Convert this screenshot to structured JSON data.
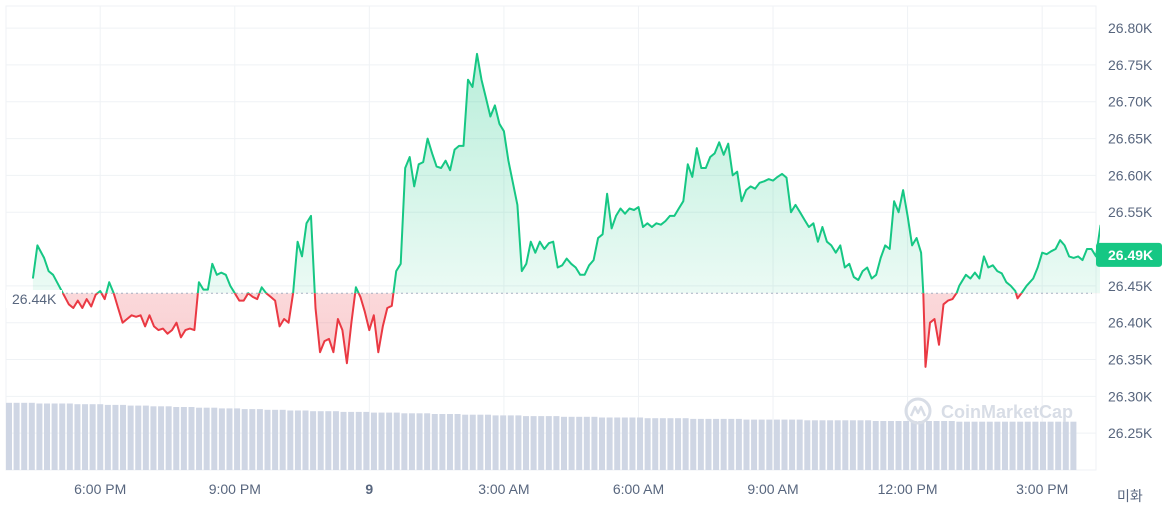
{
  "chart_data": {
    "type": "area",
    "baseline": 26.44,
    "baseline_label": "26.44K",
    "current_label": "26.49K",
    "ylim": [
      26.2,
      26.83
    ],
    "y_ticks": [
      {
        "v": 26.8,
        "label": "26.80K"
      },
      {
        "v": 26.75,
        "label": "26.75K"
      },
      {
        "v": 26.7,
        "label": "26.70K"
      },
      {
        "v": 26.65,
        "label": "26.65K"
      },
      {
        "v": 26.6,
        "label": "26.60K"
      },
      {
        "v": 26.55,
        "label": "26.55K"
      },
      {
        "v": 26.45,
        "label": "26.45K"
      },
      {
        "v": 26.4,
        "label": "26.40K"
      },
      {
        "v": 26.35,
        "label": "26.35K"
      },
      {
        "v": 26.3,
        "label": "26.30K"
      },
      {
        "v": 26.25,
        "label": "26.25K"
      }
    ],
    "x_ticks": [
      {
        "h": 18,
        "label": "6:00 PM",
        "bold": false
      },
      {
        "h": 21,
        "label": "9:00 PM",
        "bold": false
      },
      {
        "h": 24,
        "label": "9",
        "bold": true
      },
      {
        "h": 27,
        "label": "3:00 AM",
        "bold": false
      },
      {
        "h": 30,
        "label": "6:00 AM",
        "bold": false
      },
      {
        "h": 33,
        "label": "9:00 AM",
        "bold": false
      },
      {
        "h": 36,
        "label": "12:00 PM",
        "bold": false
      },
      {
        "h": 39,
        "label": "3:00 PM",
        "bold": false
      }
    ],
    "xlim_hours": [
      15.9,
      40.2
    ],
    "series": [
      {
        "values": [
          [
            16.5,
            26.46
          ],
          [
            16.6,
            26.505
          ],
          [
            16.75,
            26.488
          ],
          [
            16.85,
            26.47
          ],
          [
            16.95,
            26.465
          ],
          [
            17.3,
            26.425
          ],
          [
            17.4,
            26.42
          ],
          [
            17.5,
            26.43
          ],
          [
            17.6,
            26.42
          ],
          [
            17.7,
            26.432
          ],
          [
            17.8,
            26.422
          ],
          [
            17.9,
            26.438
          ],
          [
            18.0,
            26.443
          ],
          [
            18.1,
            26.432
          ],
          [
            18.2,
            26.455
          ],
          [
            18.3,
            26.44
          ],
          [
            18.4,
            26.42
          ],
          [
            18.5,
            26.4
          ],
          [
            18.6,
            26.405
          ],
          [
            18.7,
            26.41
          ],
          [
            18.8,
            26.408
          ],
          [
            18.9,
            26.41
          ],
          [
            19.0,
            26.395
          ],
          [
            19.1,
            26.41
          ],
          [
            19.2,
            26.395
          ],
          [
            19.3,
            26.39
          ],
          [
            19.4,
            26.392
          ],
          [
            19.5,
            26.385
          ],
          [
            19.6,
            26.39
          ],
          [
            19.7,
            26.4
          ],
          [
            19.8,
            26.38
          ],
          [
            19.9,
            26.39
          ],
          [
            20.0,
            26.392
          ],
          [
            20.1,
            26.39
          ],
          [
            20.2,
            26.455
          ],
          [
            20.3,
            26.445
          ],
          [
            20.4,
            26.445
          ],
          [
            20.5,
            26.48
          ],
          [
            20.6,
            26.465
          ],
          [
            20.7,
            26.468
          ],
          [
            20.8,
            26.465
          ],
          [
            20.9,
            26.45
          ],
          [
            21.0,
            26.44
          ],
          [
            21.1,
            26.43
          ],
          [
            21.2,
            26.43
          ],
          [
            21.3,
            26.44
          ],
          [
            21.4,
            26.435
          ],
          [
            21.5,
            26.432
          ],
          [
            21.6,
            26.448
          ],
          [
            21.7,
            26.44
          ],
          [
            21.8,
            26.435
          ],
          [
            21.9,
            26.43
          ],
          [
            22.0,
            26.395
          ],
          [
            22.1,
            26.405
          ],
          [
            22.2,
            26.4
          ],
          [
            22.3,
            26.44
          ],
          [
            22.4,
            26.51
          ],
          [
            22.5,
            26.49
          ],
          [
            22.6,
            26.535
          ],
          [
            22.7,
            26.545
          ],
          [
            22.8,
            26.42
          ],
          [
            22.9,
            26.36
          ],
          [
            23.0,
            26.375
          ],
          [
            23.1,
            26.378
          ],
          [
            23.2,
            26.36
          ],
          [
            23.3,
            26.405
          ],
          [
            23.4,
            26.39
          ],
          [
            23.5,
            26.345
          ],
          [
            23.6,
            26.4
          ],
          [
            23.7,
            26.448
          ],
          [
            23.8,
            26.435
          ],
          [
            23.9,
            26.415
          ],
          [
            24.0,
            26.39
          ],
          [
            24.1,
            26.41
          ],
          [
            24.2,
            26.36
          ],
          [
            24.3,
            26.395
          ],
          [
            24.4,
            26.42
          ],
          [
            24.5,
            26.423
          ],
          [
            24.6,
            26.47
          ],
          [
            24.7,
            26.48
          ],
          [
            24.8,
            26.61
          ],
          [
            24.9,
            26.625
          ],
          [
            25.0,
            26.585
          ],
          [
            25.1,
            26.615
          ],
          [
            25.2,
            26.618
          ],
          [
            25.3,
            26.65
          ],
          [
            25.4,
            26.63
          ],
          [
            25.5,
            26.612
          ],
          [
            25.6,
            26.61
          ],
          [
            25.7,
            26.62
          ],
          [
            25.8,
            26.607
          ],
          [
            25.9,
            26.635
          ],
          [
            26.0,
            26.64
          ],
          [
            26.1,
            26.64
          ],
          [
            26.2,
            26.73
          ],
          [
            26.3,
            26.72
          ],
          [
            26.4,
            26.765
          ],
          [
            26.5,
            26.73
          ],
          [
            26.6,
            26.705
          ],
          [
            26.7,
            26.68
          ],
          [
            26.8,
            26.695
          ],
          [
            26.9,
            26.67
          ],
          [
            27.0,
            26.66
          ],
          [
            27.1,
            26.62
          ],
          [
            27.2,
            26.59
          ],
          [
            27.3,
            26.56
          ],
          [
            27.4,
            26.47
          ],
          [
            27.5,
            26.48
          ],
          [
            27.6,
            26.51
          ],
          [
            27.7,
            26.495
          ],
          [
            27.8,
            26.51
          ],
          [
            27.9,
            26.5
          ],
          [
            28.0,
            26.508
          ],
          [
            28.1,
            26.51
          ],
          [
            28.2,
            26.475
          ],
          [
            28.3,
            26.478
          ],
          [
            28.4,
            26.487
          ],
          [
            28.5,
            26.48
          ],
          [
            28.6,
            26.475
          ],
          [
            28.7,
            26.465
          ],
          [
            28.8,
            26.465
          ],
          [
            28.9,
            26.478
          ],
          [
            29.0,
            26.485
          ],
          [
            29.1,
            26.515
          ],
          [
            29.2,
            26.52
          ],
          [
            29.3,
            26.575
          ],
          [
            29.4,
            26.528
          ],
          [
            29.5,
            26.545
          ],
          [
            29.6,
            26.555
          ],
          [
            29.7,
            26.548
          ],
          [
            29.8,
            26.555
          ],
          [
            29.9,
            26.553
          ],
          [
            30.0,
            26.557
          ],
          [
            30.1,
            26.53
          ],
          [
            30.2,
            26.535
          ],
          [
            30.3,
            26.53
          ],
          [
            30.4,
            26.535
          ],
          [
            30.5,
            26.533
          ],
          [
            30.6,
            26.538
          ],
          [
            30.7,
            26.545
          ],
          [
            30.8,
            26.545
          ],
          [
            30.9,
            26.555
          ],
          [
            31.0,
            26.565
          ],
          [
            31.1,
            26.615
          ],
          [
            31.2,
            26.598
          ],
          [
            31.3,
            26.637
          ],
          [
            31.4,
            26.61
          ],
          [
            31.5,
            26.61
          ],
          [
            31.6,
            26.625
          ],
          [
            31.7,
            26.63
          ],
          [
            31.8,
            26.645
          ],
          [
            31.9,
            26.628
          ],
          [
            32.0,
            26.643
          ],
          [
            32.1,
            26.6
          ],
          [
            32.2,
            26.605
          ],
          [
            32.3,
            26.565
          ],
          [
            32.4,
            26.58
          ],
          [
            32.5,
            26.585
          ],
          [
            32.6,
            26.582
          ],
          [
            32.7,
            26.59
          ],
          [
            32.8,
            26.592
          ],
          [
            32.9,
            26.595
          ],
          [
            33.0,
            26.593
          ],
          [
            33.1,
            26.598
          ],
          [
            33.2,
            26.602
          ],
          [
            33.3,
            26.597
          ],
          [
            33.4,
            26.55
          ],
          [
            33.5,
            26.56
          ],
          [
            33.6,
            26.55
          ],
          [
            33.7,
            26.54
          ],
          [
            33.8,
            26.53
          ],
          [
            33.9,
            26.535
          ],
          [
            34.0,
            26.51
          ],
          [
            34.1,
            26.53
          ],
          [
            34.2,
            26.51
          ],
          [
            34.3,
            26.505
          ],
          [
            34.4,
            26.495
          ],
          [
            34.5,
            26.505
          ],
          [
            34.6,
            26.475
          ],
          [
            34.7,
            26.48
          ],
          [
            34.8,
            26.462
          ],
          [
            34.9,
            26.458
          ],
          [
            35.0,
            26.47
          ],
          [
            35.1,
            26.475
          ],
          [
            35.2,
            26.46
          ],
          [
            35.3,
            26.465
          ],
          [
            35.4,
            26.488
          ],
          [
            35.5,
            26.505
          ],
          [
            35.6,
            26.5
          ],
          [
            35.7,
            26.565
          ],
          [
            35.8,
            26.55
          ],
          [
            35.9,
            26.58
          ],
          [
            36.0,
            26.545
          ],
          [
            36.1,
            26.505
          ],
          [
            36.2,
            26.515
          ],
          [
            36.3,
            26.495
          ],
          [
            36.35,
            26.44
          ],
          [
            36.4,
            26.34
          ],
          [
            36.5,
            26.4
          ],
          [
            36.6,
            26.405
          ],
          [
            36.7,
            26.37
          ],
          [
            36.8,
            26.425
          ],
          [
            36.9,
            26.43
          ],
          [
            37.0,
            26.432
          ],
          [
            37.1,
            26.441
          ],
          [
            37.15,
            26.45
          ],
          [
            37.3,
            26.465
          ],
          [
            37.4,
            26.46
          ],
          [
            37.5,
            26.468
          ],
          [
            37.6,
            26.46
          ],
          [
            37.7,
            26.49
          ],
          [
            37.8,
            26.475
          ],
          [
            37.9,
            26.478
          ],
          [
            38.0,
            26.47
          ],
          [
            38.1,
            26.467
          ],
          [
            38.2,
            26.455
          ],
          [
            38.3,
            26.45
          ],
          [
            38.4,
            26.443
          ],
          [
            38.45,
            26.433
          ],
          [
            38.55,
            26.441
          ],
          [
            38.65,
            26.45
          ],
          [
            38.8,
            26.46
          ],
          [
            38.9,
            26.475
          ],
          [
            39.0,
            26.495
          ],
          [
            39.1,
            26.493
          ],
          [
            39.2,
            26.497
          ],
          [
            39.3,
            26.5
          ],
          [
            39.4,
            26.512
          ],
          [
            39.5,
            26.505
          ],
          [
            39.6,
            26.49
          ],
          [
            39.7,
            26.488
          ],
          [
            39.8,
            26.49
          ],
          [
            39.9,
            26.485
          ],
          [
            40.0,
            26.5
          ],
          [
            40.1,
            26.5
          ],
          [
            40.2,
            26.49
          ],
          [
            40.3,
            26.532
          ],
          [
            40.4,
            26.535
          ],
          [
            40.5,
            26.552
          ],
          [
            40.6,
            26.53
          ],
          [
            40.7,
            26.537
          ],
          [
            40.8,
            26.555
          ],
          [
            40.9,
            26.492
          ]
        ]
      }
    ],
    "volume": {
      "ylim": [
        0,
        1
      ],
      "values": [
        0.96,
        0.96,
        0.96,
        0.96,
        0.95,
        0.95,
        0.95,
        0.95,
        0.95,
        0.94,
        0.94,
        0.94,
        0.94,
        0.93,
        0.93,
        0.93,
        0.92,
        0.92,
        0.92,
        0.91,
        0.91,
        0.91,
        0.9,
        0.9,
        0.9,
        0.89,
        0.89,
        0.89,
        0.88,
        0.88,
        0.88,
        0.87,
        0.87,
        0.87,
        0.86,
        0.86,
        0.86,
        0.85,
        0.85,
        0.85,
        0.84,
        0.84,
        0.84,
        0.84,
        0.83,
        0.83,
        0.83,
        0.83,
        0.82,
        0.82,
        0.82,
        0.82,
        0.81,
        0.81,
        0.81,
        0.81,
        0.8,
        0.8,
        0.8,
        0.8,
        0.79,
        0.79,
        0.79,
        0.79,
        0.78,
        0.78,
        0.78,
        0.78,
        0.77,
        0.77,
        0.77,
        0.77,
        0.77,
        0.76,
        0.76,
        0.76,
        0.76,
        0.76,
        0.75,
        0.75,
        0.75,
        0.75,
        0.75,
        0.75,
        0.74,
        0.74,
        0.74,
        0.74,
        0.74,
        0.74,
        0.73,
        0.73,
        0.73,
        0.73,
        0.73,
        0.73,
        0.73,
        0.72,
        0.72,
        0.72,
        0.72,
        0.72,
        0.72,
        0.72,
        0.72,
        0.71,
        0.71,
        0.71,
        0.71,
        0.71,
        0.71,
        0.71,
        0.71,
        0.71,
        0.7,
        0.7,
        0.7,
        0.7,
        0.7,
        0.7,
        0.7,
        0.7,
        0.7,
        0.7,
        0.7,
        0.69,
        0.69,
        0.69,
        0.69,
        0.69,
        0.69,
        0.69,
        0.69,
        0.69,
        0.69,
        0.69,
        0.69,
        0.69,
        0.69,
        0.69,
        0.69
      ]
    },
    "colors": {
      "up": "#16c784",
      "down": "#ea3943",
      "volume": "#cfd6e4",
      "grid": "#eff2f5",
      "baseline": "#a6b0c3",
      "badge_bg": "#16c784"
    }
  },
  "watermark": {
    "text": "CoinMarketCap",
    "icon": "coinmarketcap-logo-icon"
  },
  "x_axis_suffix": "미화"
}
